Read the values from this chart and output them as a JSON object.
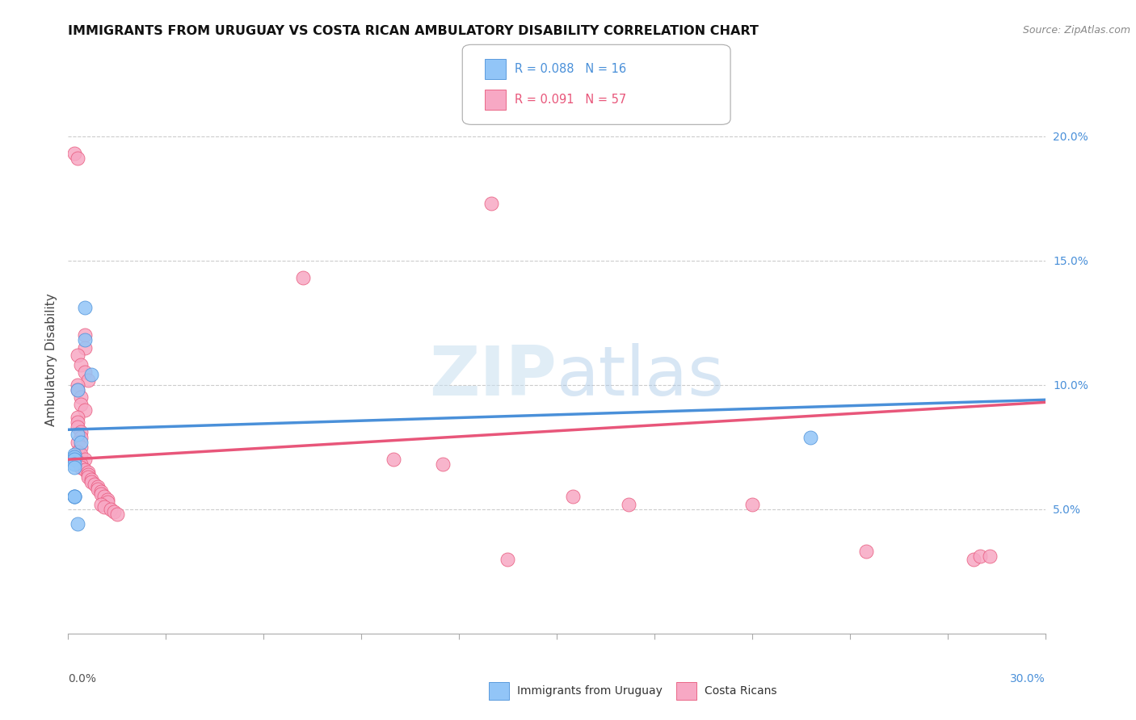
{
  "title": "IMMIGRANTS FROM URUGUAY VS COSTA RICAN AMBULATORY DISABILITY CORRELATION CHART",
  "source": "Source: ZipAtlas.com",
  "ylabel": "Ambulatory Disability",
  "right_ytick_labels": [
    "5.0%",
    "10.0%",
    "15.0%",
    "20.0%"
  ],
  "blue_color": "#92c5f7",
  "pink_color": "#f7a8c4",
  "line_blue": "#4a90d9",
  "line_pink": "#e8567a",
  "xlim": [
    0.0,
    0.3
  ],
  "ylim": [
    0.0,
    0.22
  ],
  "uruguay_points": [
    [
      0.005,
      0.131
    ],
    [
      0.005,
      0.118
    ],
    [
      0.007,
      0.104
    ],
    [
      0.003,
      0.098
    ],
    [
      0.003,
      0.08
    ],
    [
      0.004,
      0.077
    ],
    [
      0.002,
      0.072
    ],
    [
      0.002,
      0.071
    ],
    [
      0.002,
      0.07
    ],
    [
      0.002,
      0.068
    ],
    [
      0.002,
      0.067
    ],
    [
      0.002,
      0.055
    ],
    [
      0.003,
      0.044
    ],
    [
      0.002,
      0.055
    ],
    [
      0.002,
      0.055
    ],
    [
      0.228,
      0.079
    ]
  ],
  "costarica_points": [
    [
      0.002,
      0.193
    ],
    [
      0.003,
      0.191
    ],
    [
      0.13,
      0.173
    ],
    [
      0.072,
      0.143
    ],
    [
      0.005,
      0.12
    ],
    [
      0.005,
      0.115
    ],
    [
      0.003,
      0.112
    ],
    [
      0.004,
      0.108
    ],
    [
      0.005,
      0.105
    ],
    [
      0.006,
      0.102
    ],
    [
      0.003,
      0.1
    ],
    [
      0.003,
      0.098
    ],
    [
      0.004,
      0.095
    ],
    [
      0.004,
      0.092
    ],
    [
      0.005,
      0.09
    ],
    [
      0.003,
      0.087
    ],
    [
      0.003,
      0.085
    ],
    [
      0.003,
      0.083
    ],
    [
      0.004,
      0.081
    ],
    [
      0.004,
      0.079
    ],
    [
      0.003,
      0.077
    ],
    [
      0.004,
      0.075
    ],
    [
      0.003,
      0.073
    ],
    [
      0.004,
      0.072
    ],
    [
      0.005,
      0.07
    ],
    [
      0.003,
      0.069
    ],
    [
      0.004,
      0.068
    ],
    [
      0.004,
      0.067
    ],
    [
      0.005,
      0.066
    ],
    [
      0.006,
      0.065
    ],
    [
      0.006,
      0.064
    ],
    [
      0.006,
      0.063
    ],
    [
      0.007,
      0.062
    ],
    [
      0.007,
      0.061
    ],
    [
      0.008,
      0.06
    ],
    [
      0.009,
      0.059
    ],
    [
      0.009,
      0.058
    ],
    [
      0.01,
      0.057
    ],
    [
      0.01,
      0.056
    ],
    [
      0.011,
      0.055
    ],
    [
      0.012,
      0.054
    ],
    [
      0.012,
      0.053
    ],
    [
      0.01,
      0.052
    ],
    [
      0.011,
      0.051
    ],
    [
      0.013,
      0.05
    ],
    [
      0.014,
      0.049
    ],
    [
      0.015,
      0.048
    ],
    [
      0.1,
      0.07
    ],
    [
      0.115,
      0.068
    ],
    [
      0.155,
      0.055
    ],
    [
      0.172,
      0.052
    ],
    [
      0.135,
      0.03
    ],
    [
      0.21,
      0.052
    ],
    [
      0.245,
      0.033
    ],
    [
      0.278,
      0.03
    ],
    [
      0.28,
      0.031
    ],
    [
      0.283,
      0.031
    ]
  ],
  "ury_line": [
    0.0,
    0.3,
    0.082,
    0.094
  ],
  "cr_line": [
    0.0,
    0.3,
    0.07,
    0.093
  ]
}
